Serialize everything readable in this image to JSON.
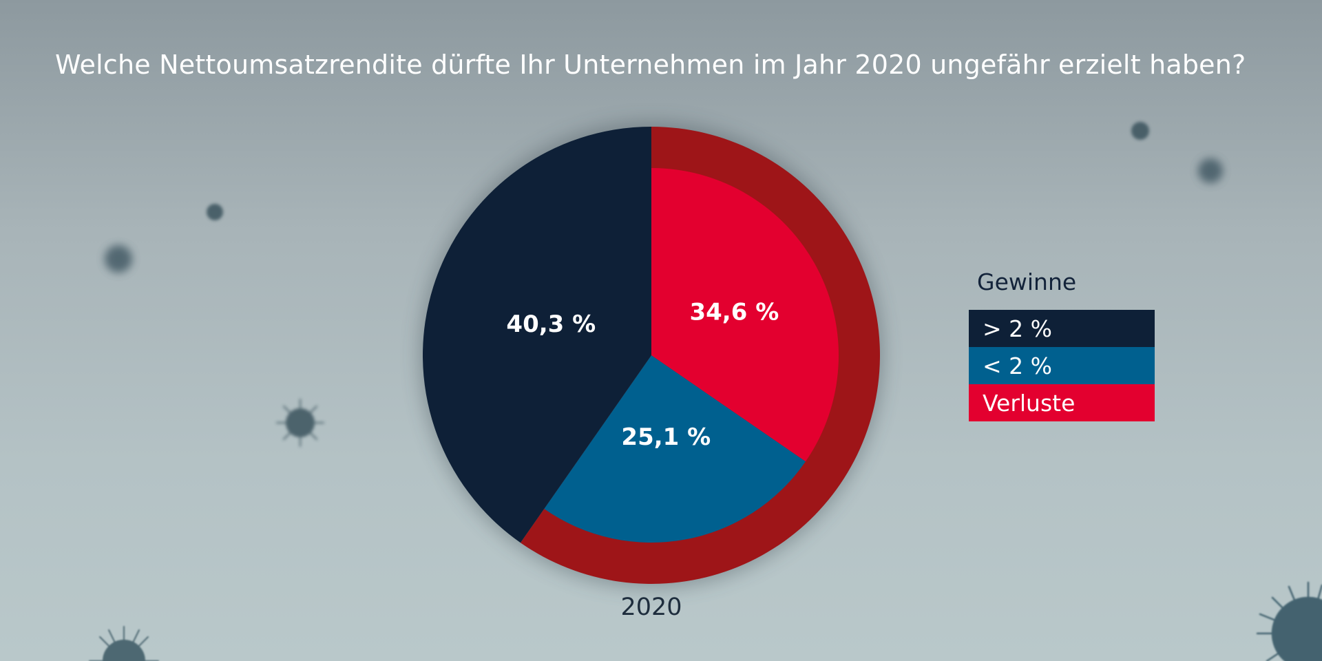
{
  "colors": {
    "gt2": "#0e2037",
    "lt2": "#00608f",
    "verluste": "#e3002f",
    "verluste_ring": "#9e1518"
  },
  "chart_data": {
    "type": "pie",
    "title": "Welche Nettoumsatzrendite dürfte Ihr Unternehmen im Jahr 2020 ungefähr erzielt haben?",
    "xlabel": "2020",
    "legend_title": "Gewinne",
    "legend_placement": "right",
    "slices": [
      {
        "name": "Verluste",
        "value": 34.6,
        "label": "34,6 %",
        "color": "#e3002f"
      },
      {
        "name": "< 2 %",
        "value": 25.1,
        "label": "25,1 %",
        "color": "#00608f"
      },
      {
        "name": "> 2 %",
        "value": 40.3,
        "label": "40,3 %",
        "color": "#0e2037"
      }
    ]
  },
  "legend": {
    "title": "Gewinne",
    "items": [
      {
        "label": "> 2 %",
        "color": "#0e2037"
      },
      {
        "label": "< 2 %",
        "color": "#00608f"
      },
      {
        "label": "Verluste",
        "color": "#e3002f"
      }
    ]
  }
}
